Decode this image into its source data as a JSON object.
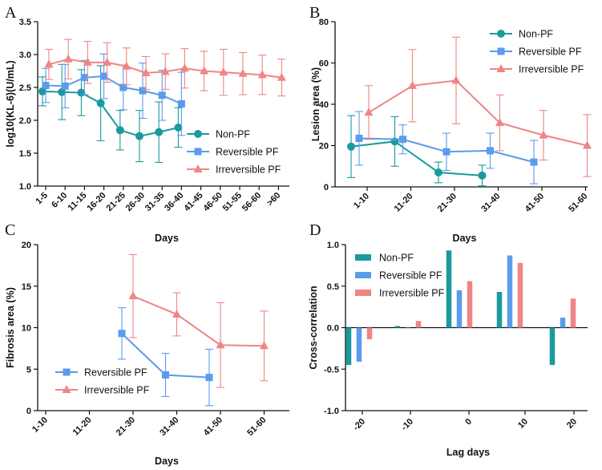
{
  "colors": {
    "non_pf": "#1a9a9e",
    "reversible_pf": "#5b9bec",
    "irreversible_pf": "#ef8585"
  },
  "chart_data": [
    {
      "panel": "A",
      "type": "line",
      "xlabel": "Days",
      "ylabel": "log10(KL-6)(U/mL)",
      "ylim": [
        1.0,
        3.5
      ],
      "yticks": [
        "1.0",
        "1.5",
        "2.0",
        "2.5",
        "3.0",
        "3.5"
      ],
      "categories": [
        "1-5",
        "6-10",
        "11-15",
        "16-20",
        "21-25",
        "26-30",
        "31-35",
        "36-40",
        "41-45",
        "46-50",
        "51-55",
        "56-60",
        ">60"
      ],
      "legend": [
        "Non-PF",
        "Reversible PF",
        "Irreversible PF"
      ],
      "series": [
        {
          "name": "Non-PF",
          "marker": "circle",
          "values": [
            2.44,
            2.43,
            2.42,
            2.26,
            1.85,
            1.76,
            1.82,
            1.89,
            null,
            null,
            null,
            null,
            null
          ],
          "err": [
            0.22,
            0.42,
            0.35,
            0.57,
            0.3,
            0.39,
            0.46,
            0.3,
            null,
            null,
            null,
            null,
            null
          ]
        },
        {
          "name": "Reversible PF",
          "marker": "square",
          "values": [
            2.53,
            2.52,
            2.65,
            2.67,
            2.5,
            2.45,
            2.38,
            2.25,
            null,
            null,
            null,
            null,
            null
          ],
          "err": [
            0.26,
            0.33,
            0.26,
            0.34,
            0.34,
            0.42,
            0.38,
            0.48,
            null,
            null,
            null,
            null,
            null
          ]
        },
        {
          "name": "Irreversible PF",
          "marker": "triangle",
          "values": [
            2.85,
            2.93,
            2.88,
            2.88,
            2.82,
            2.72,
            2.74,
            2.79,
            2.75,
            2.73,
            2.71,
            2.69,
            2.65
          ],
          "err": [
            0.23,
            0.3,
            0.32,
            0.3,
            0.28,
            0.25,
            0.27,
            0.3,
            0.3,
            0.35,
            0.32,
            0.3,
            0.28
          ]
        }
      ]
    },
    {
      "panel": "B",
      "type": "line",
      "xlabel": "Days",
      "ylabel": "Lesion area (%)",
      "ylim": [
        0,
        80
      ],
      "yticks": [
        "0",
        "20",
        "40",
        "60",
        "80"
      ],
      "categories": [
        "1-10",
        "11-20",
        "21-30",
        "31-40",
        "41-50",
        "51-60"
      ],
      "legend": [
        "Non-PF",
        "Reversible PF",
        "Irreversible PF"
      ],
      "series": [
        {
          "name": "Non-PF",
          "marker": "circle",
          "values": [
            19.5,
            22.0,
            7.0,
            5.5,
            null,
            null
          ],
          "err": [
            15.0,
            12.0,
            5.0,
            5.0,
            null,
            null
          ]
        },
        {
          "name": "Reversible PF",
          "marker": "square",
          "values": [
            23.5,
            23.0,
            17.0,
            17.5,
            12.0,
            null
          ],
          "err": [
            13.0,
            7.0,
            9.0,
            8.5,
            10.5,
            null
          ]
        },
        {
          "name": "Irreversible PF",
          "marker": "triangle",
          "values": [
            36.0,
            49.0,
            51.5,
            31.0,
            25.0,
            20.0
          ],
          "err": [
            13.0,
            17.5,
            21.0,
            13.5,
            12.0,
            15.0
          ]
        }
      ]
    },
    {
      "panel": "C",
      "type": "line",
      "xlabel": "Days",
      "ylabel": "Fibrosis area (%)",
      "ylim": [
        0,
        20
      ],
      "yticks": [
        "0",
        "5",
        "10",
        "15",
        "20"
      ],
      "categories": [
        "1-10",
        "11-20",
        "21-30",
        "31-40",
        "41-50",
        "51-60"
      ],
      "legend": [
        "Reversible PF",
        "Irreversible PF"
      ],
      "series": [
        {
          "name": "Reversible PF",
          "marker": "square",
          "values": [
            null,
            null,
            9.3,
            4.3,
            4.0,
            null
          ],
          "err": [
            null,
            null,
            3.1,
            2.6,
            3.4,
            null
          ]
        },
        {
          "name": "Irreversible PF",
          "marker": "triangle",
          "values": [
            null,
            null,
            13.8,
            11.6,
            7.9,
            7.8
          ],
          "err": [
            null,
            null,
            5.0,
            2.6,
            5.1,
            4.2
          ]
        }
      ]
    },
    {
      "panel": "D",
      "type": "bar",
      "xlabel": "Lag days",
      "ylabel": "Cross-correlation",
      "ylim": [
        -1.0,
        1.0
      ],
      "yticks": [
        "-1.0",
        "-0.5",
        "0.0",
        "0.5",
        "1.0"
      ],
      "x": [
        -20,
        -10,
        0,
        10,
        20
      ],
      "xticks": [
        "-20",
        "-10",
        "0",
        "10",
        "20"
      ],
      "legend": [
        "Non-PF",
        "Reversible PF",
        "Irreversible PF"
      ],
      "series": [
        {
          "name": "Non-PF",
          "values": [
            -0.45,
            0.02,
            0.93,
            0.43,
            -0.45
          ]
        },
        {
          "name": "Reversible PF",
          "values": [
            -0.41,
            0.0,
            0.45,
            0.87,
            0.12
          ]
        },
        {
          "name": "Irreversible PF",
          "values": [
            -0.14,
            0.08,
            0.56,
            0.78,
            0.35
          ]
        }
      ]
    }
  ]
}
